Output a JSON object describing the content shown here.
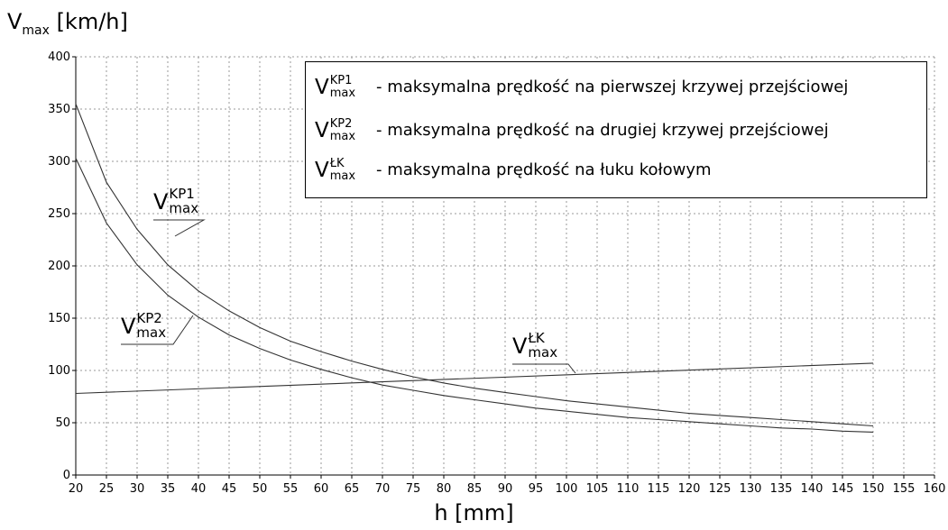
{
  "chart_data": {
    "type": "line",
    "ylabel_main": "V",
    "ylabel_sub": "max",
    "ylabel_unit": " [km/h]",
    "xlabel": "h [mm]",
    "xlim": [
      20,
      160
    ],
    "ylim": [
      0,
      400
    ],
    "xticks": [
      "20",
      "25",
      "30",
      "35",
      "40",
      "45",
      "50",
      "55",
      "60",
      "65",
      "70",
      "75",
      "80",
      "85",
      "90",
      "95",
      "100",
      "105",
      "110",
      "115",
      "120",
      "125",
      "130",
      "135",
      "140",
      "145",
      "150",
      "155",
      "160"
    ],
    "yticks": [
      "0",
      "50",
      "100",
      "150",
      "200",
      "250",
      "300",
      "350",
      "400"
    ],
    "grid": true,
    "series": [
      {
        "name_main": "V",
        "name_sup": "KP1",
        "name_sub": "max",
        "x": [
          20,
          25,
          30,
          35,
          40,
          45,
          50,
          55,
          60,
          65,
          70,
          75,
          80,
          85,
          90,
          95,
          100,
          105,
          110,
          115,
          120,
          125,
          130,
          135,
          140,
          145,
          150
        ],
        "y": [
          355,
          280,
          235,
          201,
          176,
          157,
          141,
          128,
          118,
          109,
          101,
          94,
          88,
          83,
          79,
          75,
          71,
          68,
          65,
          62,
          59,
          57,
          55,
          53,
          51,
          49,
          47
        ]
      },
      {
        "name_main": "V",
        "name_sup": "KP2",
        "name_sub": "max",
        "x": [
          20,
          25,
          30,
          35,
          40,
          45,
          50,
          55,
          60,
          65,
          70,
          75,
          80,
          85,
          90,
          95,
          100,
          105,
          110,
          115,
          120,
          125,
          130,
          135,
          140,
          145,
          150
        ],
        "y": [
          303,
          241,
          201,
          172,
          151,
          134,
          121,
          110,
          101,
          93,
          86,
          81,
          76,
          72,
          68,
          64,
          61,
          58,
          55,
          53,
          51,
          49,
          47,
          45,
          44,
          42,
          41
        ]
      },
      {
        "name_main": "V",
        "name_sup": "ŁK",
        "name_sub": "max",
        "x": [
          20,
          150
        ],
        "y": [
          78,
          107
        ]
      }
    ],
    "legend": {
      "placement": "top-right",
      "entries": [
        {
          "main": "V",
          "sup": "KP1",
          "sub": "max",
          "desc": "- maksymalna prędkość na pierwszej krzywej przejściowej"
        },
        {
          "main": "V",
          "sup": "KP2",
          "sub": "max",
          "desc": "- maksymalna prędkość na drugiej krzywej przejściowej"
        },
        {
          "main": "V",
          "sup": "ŁK",
          "sub": "max",
          "desc": "- maksymalna prędkość na łuku kołowym"
        }
      ]
    }
  },
  "colors": {
    "axis": "#000000",
    "grid": "#9a9a9a",
    "line": "#333333"
  }
}
